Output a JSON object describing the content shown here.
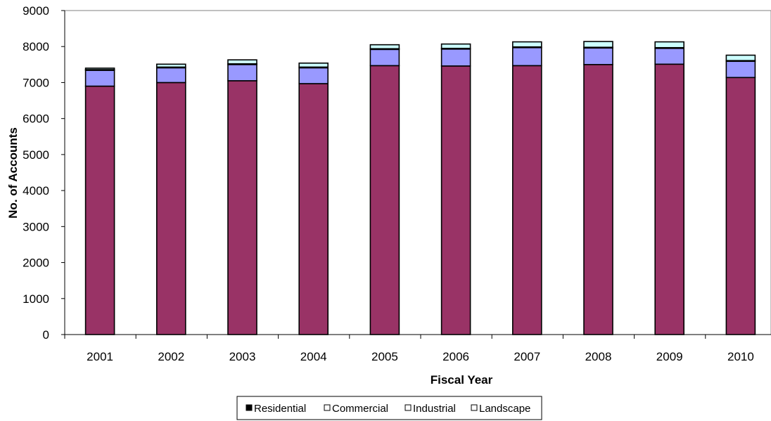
{
  "chart_data": {
    "type": "bar",
    "stacked": true,
    "title": "",
    "xlabel": "Fiscal Year",
    "ylabel": "No. of Accounts",
    "ylim": [
      0,
      9000
    ],
    "yticks": [
      "0",
      "1000",
      "2000",
      "3000",
      "4000",
      "5000",
      "6000",
      "7000",
      "8000",
      "9000"
    ],
    "categories": [
      "2001",
      "2002",
      "2003",
      "2004",
      "2005",
      "2006",
      "2007",
      "2008",
      "2009",
      "2010"
    ],
    "grid": false,
    "legend_position": "bottom",
    "series": [
      {
        "name": "Residential",
        "color": "#993366",
        "values": [
          6900,
          7000,
          7050,
          6970,
          7470,
          7460,
          7470,
          7500,
          7510,
          7140
        ]
      },
      {
        "name": "Commercial",
        "color": "#9999ff",
        "values": [
          440,
          410,
          450,
          440,
          450,
          470,
          500,
          460,
          440,
          450
        ]
      },
      {
        "name": "Industrial",
        "color": "#ffffcc",
        "values": [
          20,
          20,
          20,
          20,
          20,
          20,
          20,
          20,
          20,
          20
        ]
      },
      {
        "name": "Landscape",
        "color": "#ccffff",
        "values": [
          40,
          80,
          110,
          110,
          110,
          120,
          140,
          160,
          160,
          150
        ]
      }
    ]
  }
}
